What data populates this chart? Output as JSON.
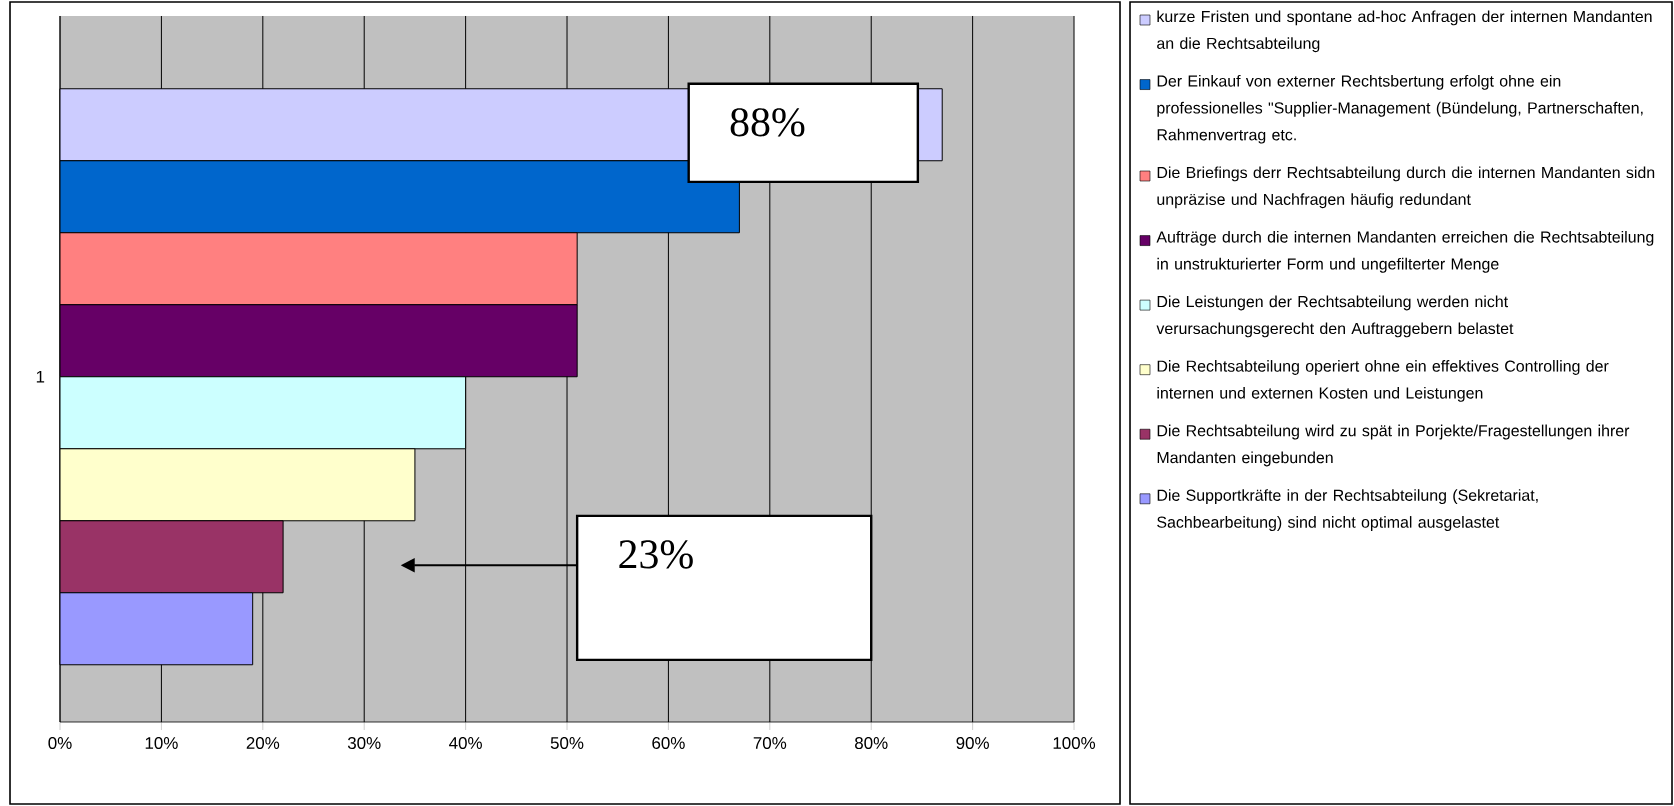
{
  "chart_data": {
    "type": "bar",
    "orientation": "horizontal",
    "categories": [
      "1"
    ],
    "series": [
      {
        "name": "kurze Fristen und spontane ad-hoc Anfragen der internen Mandanten an die Rechtsabteilung",
        "color": "#ccccff",
        "values": [
          87
        ]
      },
      {
        "name": "Der Einkauf von externer Rechtsbertung erfolgt ohne ein professionelles \"Supplier-Management (Bündelung, Partnerschaften, Rahmenvertrag etc.",
        "color": "#0066cc",
        "values": [
          67
        ]
      },
      {
        "name": "Die Briefings derr Rechtsabteilung durch die internen Mandanten sidn unpräzise und Nachfragen häufig redundant",
        "color": "#ff8080",
        "values": [
          51
        ]
      },
      {
        "name": "Aufträge durch die internen Mandanten erreichen die Rechtsabteilung in unstrukturierter Form und ungefilterter Menge",
        "color": "#660066",
        "values": [
          51
        ]
      },
      {
        "name": "Die Leistungen der Rechtsabteilung werden nicht verursachungsgerecht den Auftraggebern belastet",
        "color": "#ccffff",
        "values": [
          40
        ]
      },
      {
        "name": "Die Rechtsabteilung operiert ohne ein effektives Controlling der internen und externen Kosten und Leistungen",
        "color": "#ffffcc",
        "values": [
          35
        ]
      },
      {
        "name": "Die Rechtsabteilung wird zu spät in Porjekte/Fragestellungen ihrer Mandanten eingebunden",
        "color": "#993366",
        "values": [
          22
        ]
      },
      {
        "name": "Die Supportkräfte in der Rechtsabteilung (Sekretariat, Sachbearbeitung) sind nicht optimal ausgelastet",
        "color": "#9999ff",
        "values": [
          19
        ]
      }
    ],
    "xlim": [
      0,
      100
    ],
    "xticks": [
      {
        "value": 0,
        "label": "0%"
      },
      {
        "value": 10,
        "label": "10%"
      },
      {
        "value": 20,
        "label": "20%"
      },
      {
        "value": 30,
        "label": "30%"
      },
      {
        "value": 40,
        "label": "40%"
      },
      {
        "value": 50,
        "label": "50%"
      },
      {
        "value": 60,
        "label": "60%"
      },
      {
        "value": 70,
        "label": "70%"
      },
      {
        "value": 80,
        "label": "80%"
      },
      {
        "value": 90,
        "label": "90%"
      },
      {
        "value": 100,
        "label": "100%"
      }
    ],
    "grid": "x",
    "legend": "right",
    "annotations": [
      "88%",
      "23%"
    ]
  }
}
